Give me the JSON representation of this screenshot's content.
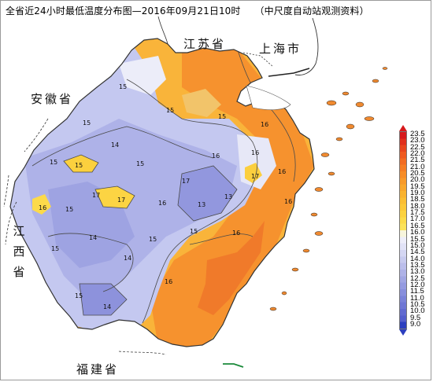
{
  "title": {
    "main": "全省近24小时最低温度分布图—2016年09月21日10时",
    "source": "（中尺度自动站观测资料）"
  },
  "places": {
    "jiangsu": "江苏省",
    "shanghai": "上海市",
    "anhui": "安徽省",
    "jiangxi": [
      "江",
      "西",
      "省"
    ],
    "fujian": "福建省"
  },
  "legend": {
    "labels": [
      "23.5",
      "23.0",
      "22.5",
      "22.0",
      "21.5",
      "21.0",
      "20.5",
      "20.0",
      "19.5",
      "19.0",
      "18.5",
      "18.0",
      "17.5",
      "17.0",
      "16.5",
      "16.0",
      "15.5",
      "15.0",
      "14.5",
      "14.0",
      "13.5",
      "13.0",
      "12.5",
      "12.0",
      "11.5",
      "11.0",
      "10.5",
      "10.0",
      "9.5",
      "9.0"
    ],
    "colors": [
      "#d7191c",
      "#e0301d",
      "#e8461e",
      "#ef5a20",
      "#f26c22",
      "#f57d24",
      "#f78c26",
      "#f89a29",
      "#f9a72c",
      "#fab32f",
      "#fbbe33",
      "#fcc838",
      "#fcd23f",
      "#fcdb4a",
      "#fce35a",
      "#f7f5dc",
      "#eeeefa",
      "#e2e3f7",
      "#d5d7f3",
      "#c8cbef",
      "#bbbeeb",
      "#aeb2e7",
      "#a1a6e3",
      "#949ae0",
      "#878edc",
      "#7a82d8",
      "#6e76d4",
      "#616ad0",
      "#545ecc",
      "#2c3fbf"
    ]
  },
  "contour_labels": [
    "15",
    "15",
    "15",
    "16",
    "17",
    "16",
    "17",
    "15",
    "13",
    "16",
    "15",
    "17",
    "16",
    "14",
    "15",
    "14",
    "15",
    "15",
    "15",
    "16",
    "16",
    "14",
    "15",
    "15",
    "16",
    "16",
    "16",
    "15",
    "13",
    "14",
    "17"
  ]
}
